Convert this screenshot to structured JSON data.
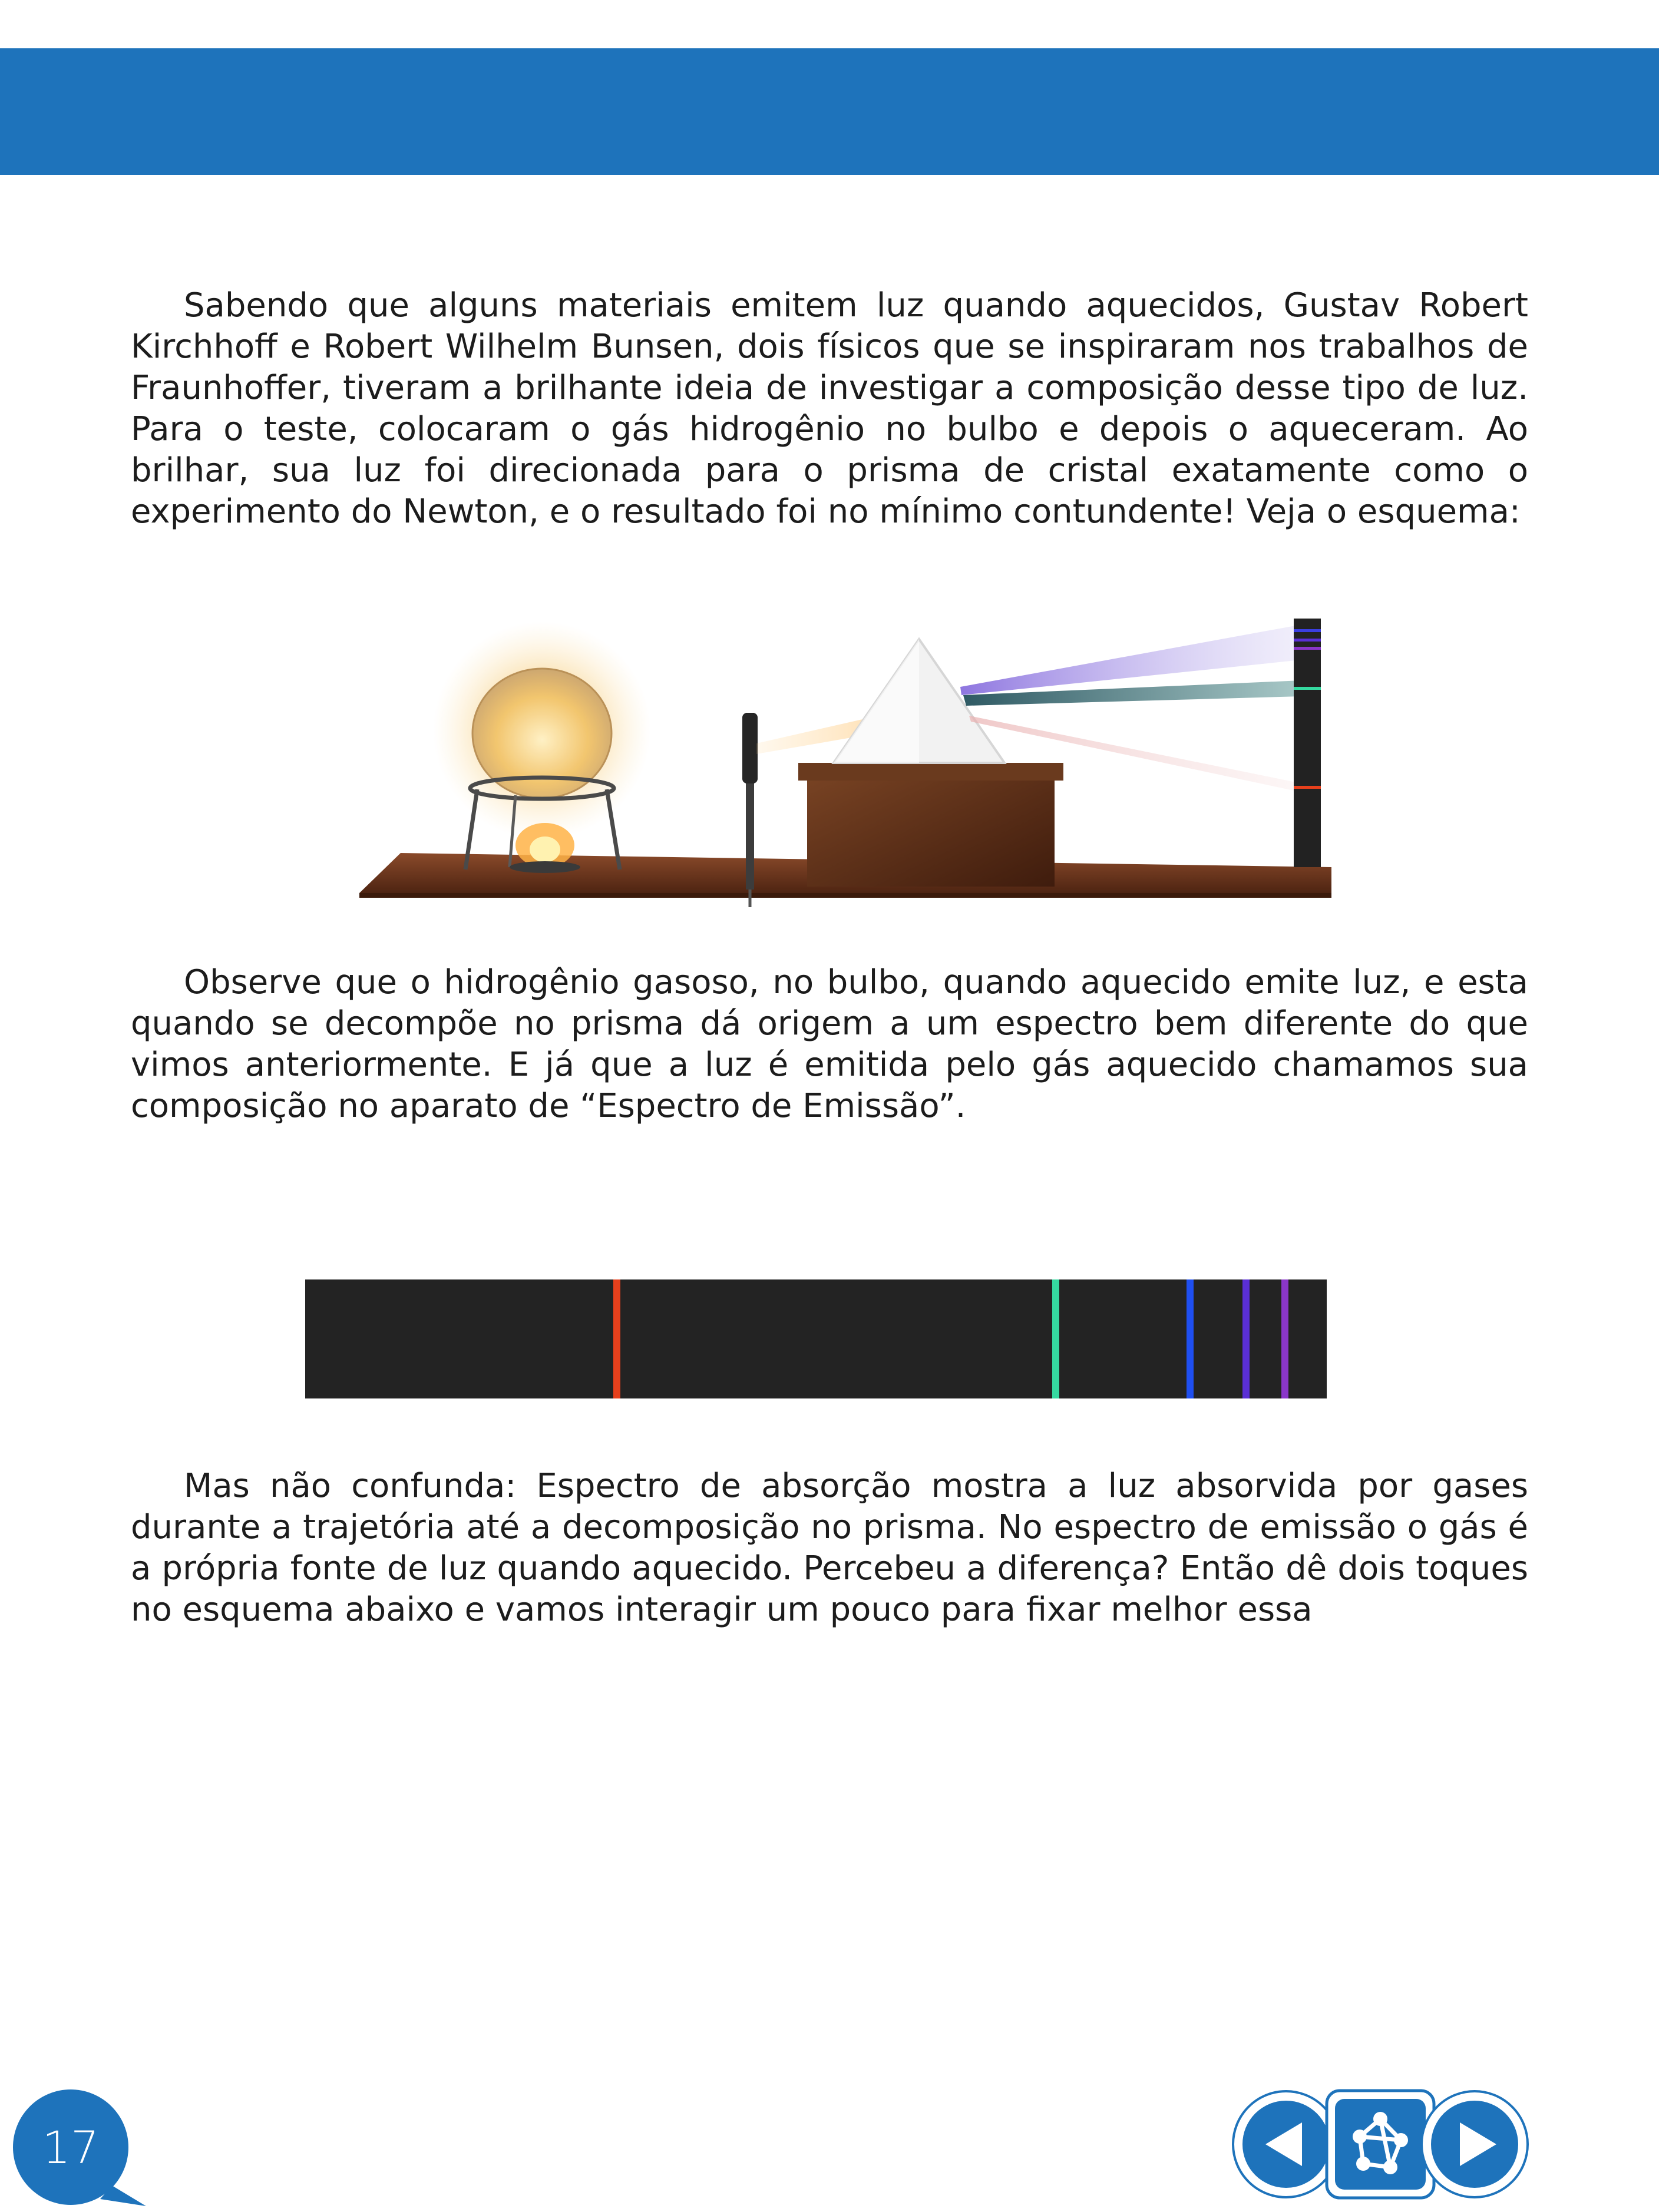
{
  "page": {
    "number": "17",
    "colors": {
      "header_band": "#1e73bb",
      "text": "#1c1c1c",
      "nav_blue": "#1e73bb"
    }
  },
  "content": {
    "paragraph_1": "Sabendo que alguns materiais emitem luz quando aquecidos, Gustav Robert Kirchhoff e Robert Wilhelm Bunsen, dois físicos que se inspiraram nos trabalhos de Fraunhoffer, tiveram a brilhante ideia de investigar a composição desse tipo de luz. Para o teste, colocaram o gás hidrogênio no bulbo e depois o aqueceram. Ao brilhar, sua luz foi direcionada para o prisma de cristal exatamente como o experimento do Newton, e o resultado foi no mínimo contundente! Veja o esquema:",
    "paragraph_2": "Observe que o hidrogênio gasoso, no bulbo, quando aquecido emite luz, e esta quando se decompõe no prisma dá origem a um espectro bem diferente do que vimos anteriormente. E já que a luz é emitida pelo gás aquecido chamamos sua composição no aparato de “Espectro de Emissão”.",
    "paragraph_3": "Mas não confunda: Espectro de absorção mostra a luz absorvida por gases durante a trajetória até a decomposição no prisma. No espectro de emissão o gás é a própria fonte de luz quando aquecido. Percebeu a diferença? Então dê dois toques no esquema abaixo e vamos interagir um pouco para fixar melhor essa"
  },
  "emission_spectrum": {
    "background": "#232323",
    "lines": [
      {
        "position": 0.305,
        "color": "#e8401c"
      },
      {
        "position": 0.735,
        "color": "#35d9a0"
      },
      {
        "position": 0.866,
        "color": "#1f4ff0"
      },
      {
        "position": 0.921,
        "color": "#5a2fd6"
      },
      {
        "position": 0.959,
        "color": "#8a36c9"
      }
    ]
  },
  "navigation": {
    "previous_icon": "triangle-left-icon",
    "home_icon": "molecule-network-icon",
    "next_icon": "triangle-right-icon"
  }
}
